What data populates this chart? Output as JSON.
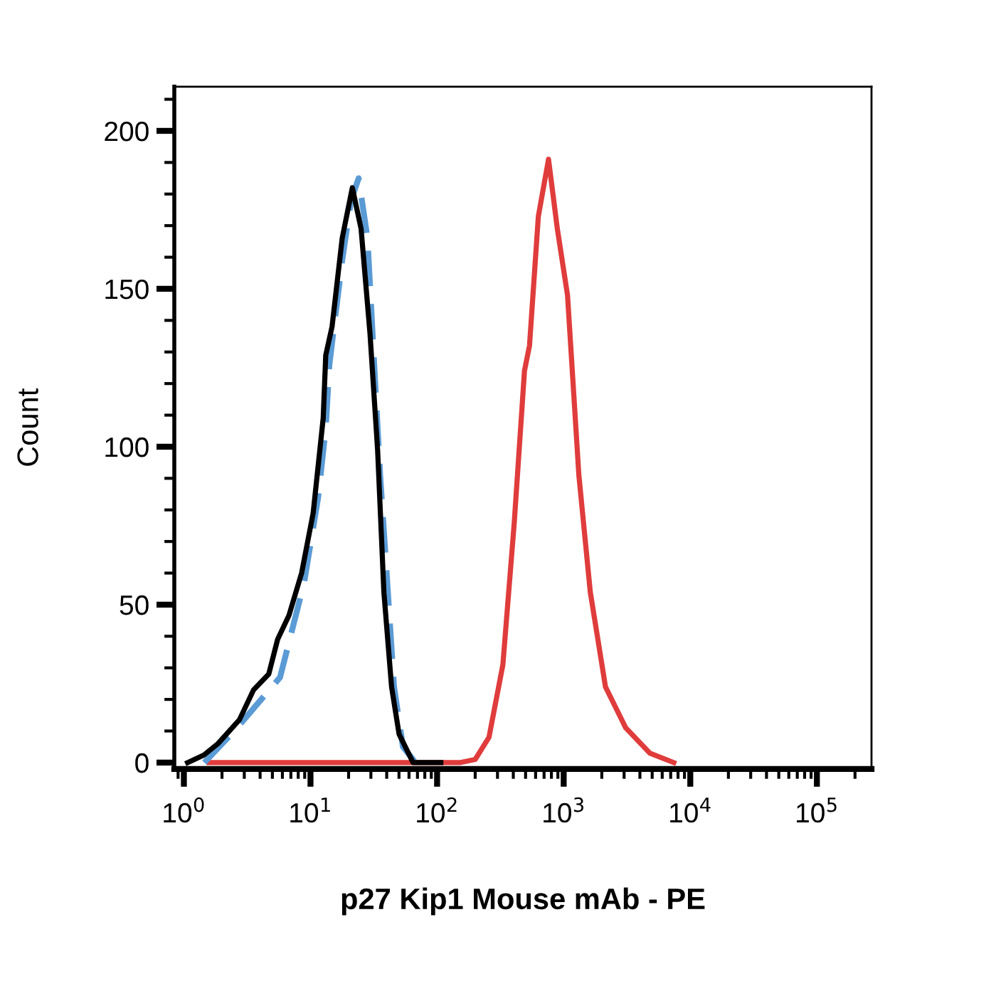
{
  "chart_data": {
    "type": "line",
    "xlabel": "p27 Kip1 Mouse mAb - PE",
    "ylabel": "Count",
    "log": "x",
    "xlim": [
      0.84,
      270000
    ],
    "xticks": [
      {
        "value": 1,
        "label": "10$^{0}$"
      },
      {
        "value": 10,
        "label": "10$^{1}$"
      },
      {
        "value": 100,
        "label": "10$^{2}$"
      },
      {
        "value": 1000,
        "label": "10$^{3}$"
      },
      {
        "value": 10000,
        "label": "10$^{4}$"
      },
      {
        "value": 100000,
        "label": "10$^{5}$"
      }
    ],
    "ylim": [
      -2,
      214
    ],
    "yticks": [
      0,
      50,
      100,
      150,
      200
    ],
    "grid": false,
    "legend": false,
    "marker": "none",
    "series": [
      {
        "color": "#e03c3c",
        "line_style": "solid",
        "x": [
          1.58,
          151,
          200,
          257,
          331,
          407,
          490,
          537,
          631,
          759,
          891,
          1072,
          1318,
          1622,
          2138,
          3090,
          4786,
          7413
        ],
        "values": [
          0,
          0,
          1,
          8,
          31,
          76,
          124,
          132,
          173,
          191,
          169,
          148,
          91,
          54,
          24,
          11,
          3,
          0
        ]
      },
      {
        "color": "#5b9bd5",
        "line_style": "dashed",
        "x": [
          1.45,
          2.63,
          5.75,
          8.91,
          11.5,
          13.2,
          14.1,
          17.8,
          20.9,
          24.0,
          28.2,
          30.9,
          35.5,
          39.8,
          45.7,
          53.7,
          67.6
        ],
        "values": [
          0,
          11,
          27,
          57,
          84,
          106,
          126,
          159,
          178,
          185,
          166,
          136,
          91,
          61,
          24,
          5,
          0
        ]
      },
      {
        "color": "#000000",
        "line_style": "solid",
        "x": [
          1.07,
          1.44,
          1.86,
          2.75,
          3.55,
          4.68,
          5.5,
          6.76,
          8.51,
          10.5,
          12.6,
          13.2,
          14.8,
          17.8,
          21.4,
          25.1,
          29.5,
          33.9,
          38.0,
          43.7,
          50.1,
          64.6,
          107
        ],
        "values": [
          0,
          2.4,
          6,
          13.6,
          23,
          28,
          39,
          46.6,
          60,
          79,
          109,
          129,
          138,
          166,
          182,
          169,
          136,
          99,
          54,
          24,
          9,
          0,
          0
        ]
      }
    ]
  }
}
